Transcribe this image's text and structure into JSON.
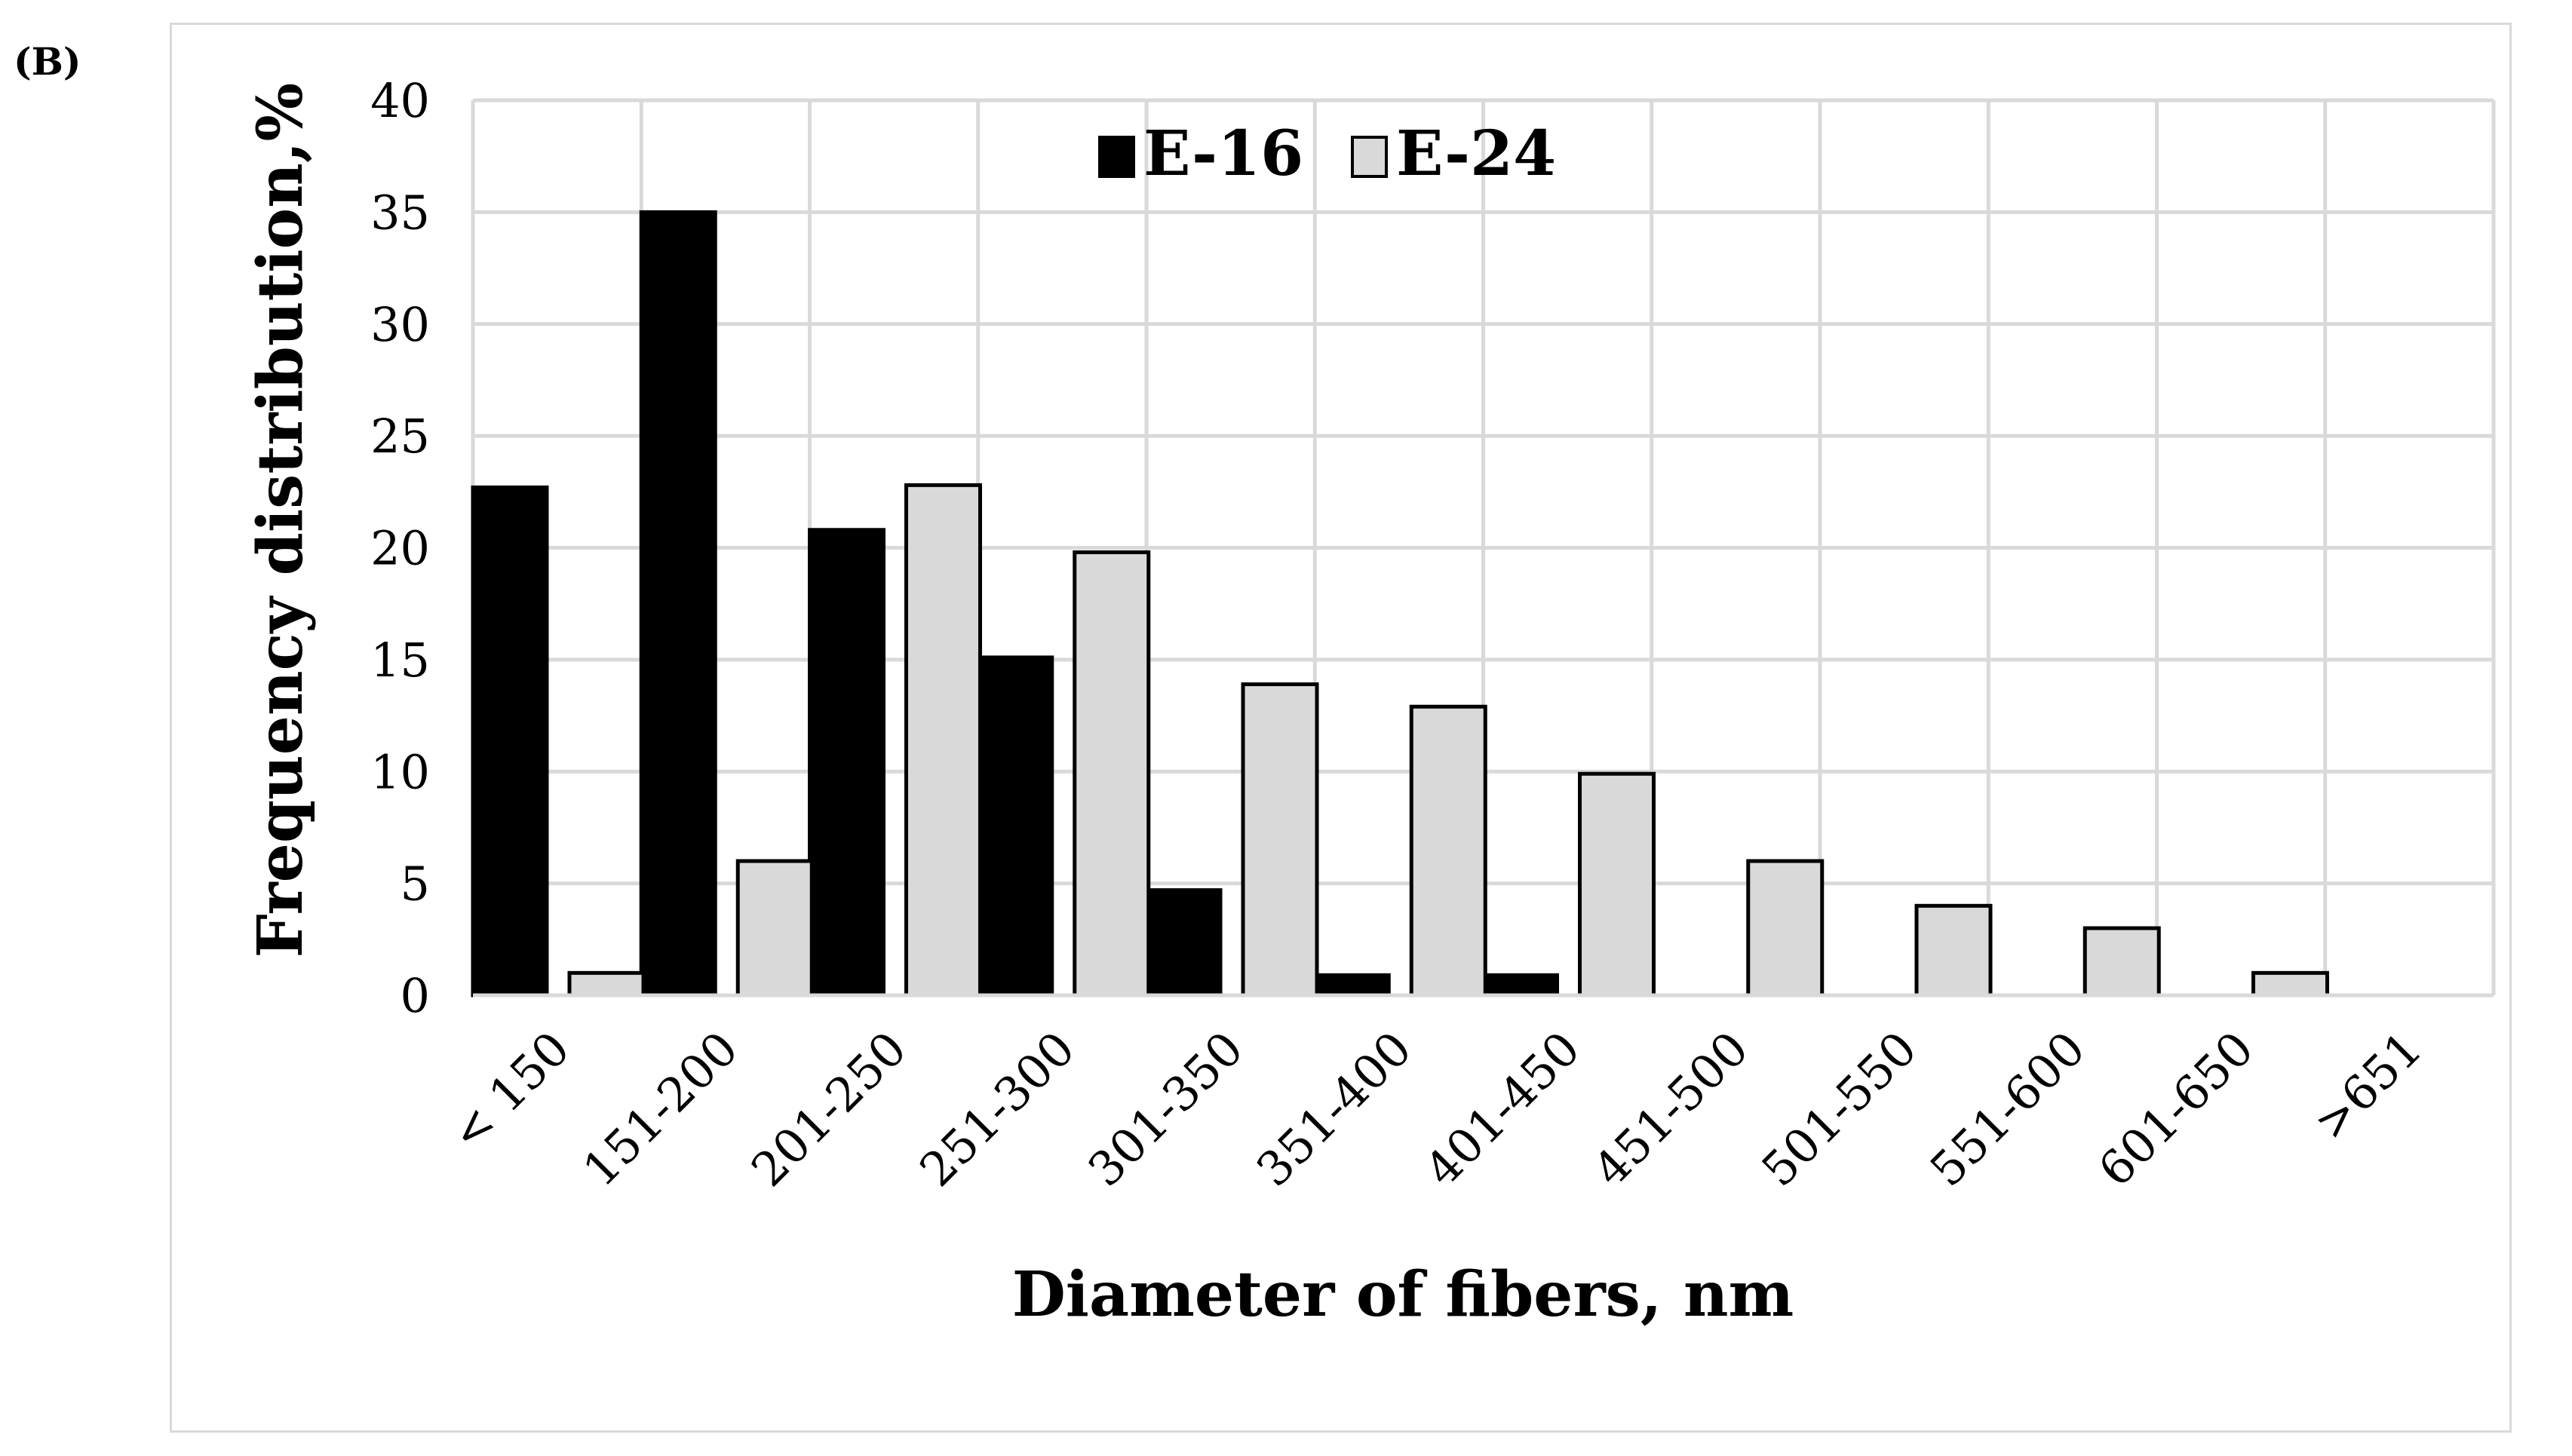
{
  "panel_label": "(B)",
  "chart_data": {
    "type": "bar",
    "xlabel": "Diameter of fibers, nm",
    "ylabel": "Frequency distribution,%",
    "ylim": [
      0,
      40
    ],
    "yticks": [
      0,
      5,
      10,
      15,
      20,
      25,
      30,
      35,
      40
    ],
    "grid": true,
    "legend_position": "top-center",
    "categories": [
      "< 150",
      "151-200",
      "201-250",
      "251-300",
      "301-350",
      "351-400",
      "401-450",
      "451-500",
      "501-550",
      "551-600",
      "601-650",
      ">651"
    ],
    "series": [
      {
        "name": "E-16",
        "color": "#000000",
        "values": [
          22.7,
          35,
          20.8,
          15.1,
          4.7,
          0.9,
          0.9,
          0,
          0,
          0,
          0,
          0
        ]
      },
      {
        "name": "E-24",
        "color": "#d9d9d9",
        "values": [
          1,
          6,
          22.8,
          19.8,
          13.9,
          12.9,
          9.9,
          6,
          4,
          3,
          1,
          0
        ]
      }
    ]
  }
}
